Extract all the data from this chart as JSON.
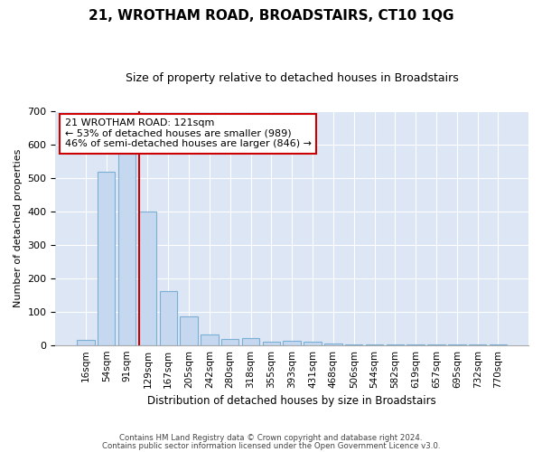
{
  "title": "21, WROTHAM ROAD, BROADSTAIRS, CT10 1QG",
  "subtitle": "Size of property relative to detached houses in Broadstairs",
  "xlabel": "Distribution of detached houses by size in Broadstairs",
  "ylabel": "Number of detached properties",
  "bar_labels": [
    "16sqm",
    "54sqm",
    "91sqm",
    "129sqm",
    "167sqm",
    "205sqm",
    "242sqm",
    "280sqm",
    "318sqm",
    "355sqm",
    "393sqm",
    "431sqm",
    "468sqm",
    "506sqm",
    "544sqm",
    "582sqm",
    "619sqm",
    "657sqm",
    "695sqm",
    "732sqm",
    "770sqm"
  ],
  "bar_heights": [
    15,
    520,
    580,
    400,
    163,
    87,
    33,
    19,
    22,
    10,
    12,
    10,
    5,
    3,
    3,
    3,
    3,
    3,
    2,
    1,
    1
  ],
  "bar_color": "#c5d8f0",
  "bar_edge_color": "#7bafd4",
  "vline_x": 3,
  "vline_color": "#cc0000",
  "annotation_text": "21 WROTHAM ROAD: 121sqm\n← 53% of detached houses are smaller (989)\n46% of semi-detached houses are larger (846) →",
  "annotation_box_color": "#ffffff",
  "annotation_box_edge": "#cc0000",
  "ylim": [
    0,
    700
  ],
  "yticks": [
    0,
    100,
    200,
    300,
    400,
    500,
    600,
    700
  ],
  "background_color": "#dce6f5",
  "footer1": "Contains HM Land Registry data © Crown copyright and database right 2024.",
  "footer2": "Contains public sector information licensed under the Open Government Licence v3.0."
}
